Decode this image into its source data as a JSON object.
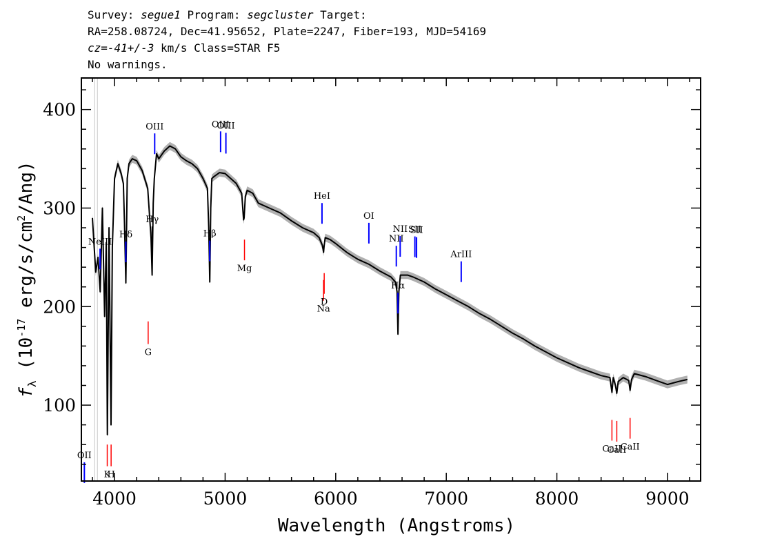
{
  "header": {
    "survey_label": "Survey: ",
    "survey": "segue1",
    "program_label": " Program: ",
    "program": "segcluster",
    "target_label": " Target:",
    "line2": "RA=258.08724, Dec=41.95652, Plate=2247, Fiber=193, MJD=54169",
    "cz_label": "cz",
    "cz_value": "=-41+/-3",
    "cz_rest": " km/s Class=STAR F5",
    "line4": "No warnings."
  },
  "chart_data": {
    "type": "line",
    "xlabel": "Wavelength (Angstroms)",
    "ylabel_parts": [
      "f",
      "λ",
      " (10",
      "-17",
      " erg/s/cm",
      "2",
      "/Ang)"
    ],
    "xlim": [
      3700,
      9300
    ],
    "ylim": [
      23,
      432
    ],
    "xticks": [
      4000,
      5000,
      6000,
      7000,
      8000,
      9000
    ],
    "yticks": [
      100,
      200,
      300,
      400
    ],
    "grid": false,
    "colors": {
      "flux": "#000000",
      "error_band": "#b0b0b0",
      "emission": "#0000ff",
      "absorption": "#ff0000"
    },
    "series": [
      {
        "x": [
          3800,
          3830,
          3850,
          3870,
          3890,
          3910,
          3925,
          3935,
          3950,
          3968,
          3980,
          4000,
          4030,
          4060,
          4080,
          4090,
          4102,
          4115,
          4130,
          4160,
          4200,
          4250,
          4300,
          4330,
          4340,
          4350,
          4360,
          4380,
          4400,
          4450,
          4500,
          4550,
          4600,
          4650,
          4700,
          4750,
          4800,
          4840,
          4852,
          4861,
          4870,
          4880,
          4900,
          4950,
          5000,
          5050,
          5100,
          5150,
          5167,
          5172,
          5183,
          5200,
          5250,
          5300,
          5400,
          5500,
          5600,
          5700,
          5800,
          5850,
          5880,
          5890,
          5896,
          5905,
          5950,
          6000,
          6100,
          6200,
          6300,
          6400,
          6500,
          6540,
          6555,
          6563,
          6571,
          6585,
          6650,
          6700,
          6800,
          6900,
          7000,
          7100,
          7200,
          7300,
          7400,
          7500,
          7600,
          7700,
          7800,
          7900,
          8000,
          8100,
          8200,
          8300,
          8400,
          8480,
          8498,
          8510,
          8530,
          8542,
          8555,
          8600,
          8650,
          8662,
          8675,
          8700,
          8800,
          8900,
          9000,
          9100,
          9180
        ],
        "y": [
          290,
          235,
          250,
          215,
          300,
          190,
          265,
          70,
          280,
          80,
          260,
          330,
          345,
          335,
          325,
          285,
          224,
          330,
          345,
          350,
          348,
          338,
          320,
          270,
          232,
          305,
          330,
          355,
          350,
          358,
          363,
          360,
          352,
          348,
          345,
          340,
          330,
          320,
          280,
          225,
          300,
          330,
          332,
          336,
          335,
          330,
          325,
          315,
          288,
          290,
          312,
          318,
          315,
          305,
          300,
          295,
          287,
          280,
          275,
          270,
          262,
          255,
          262,
          270,
          268,
          264,
          255,
          248,
          243,
          236,
          230,
          225,
          215,
          172,
          215,
          232,
          232,
          230,
          225,
          218,
          212,
          206,
          200,
          193,
          187,
          180,
          173,
          167,
          160,
          154,
          148,
          143,
          138,
          134,
          130,
          128,
          113,
          128,
          120,
          112,
          124,
          128,
          125,
          115,
          126,
          132,
          129,
          125,
          121,
          124,
          126
        ]
      }
    ],
    "emission_lines": [
      {
        "label": "OII",
        "x": 3727
      },
      {
        "label": "NeIII",
        "x": 3869
      },
      {
        "label": "Hδ",
        "x": 4102
      },
      {
        "label": "Hγ",
        "x": 4341
      },
      {
        "label": "OIII",
        "x": 4363
      },
      {
        "label": "Hβ",
        "x": 4861
      },
      {
        "label": "OIII",
        "x": 4959
      },
      {
        "label": "OIII",
        "x": 5007
      },
      {
        "label": "HeI",
        "x": 5876
      },
      {
        "label": "OI",
        "x": 6300
      },
      {
        "label": "NII",
        "x": 6548
      },
      {
        "label": "Hα",
        "x": 6563
      },
      {
        "label": "NII",
        "x": 6583
      },
      {
        "label": "SII",
        "x": 6716
      },
      {
        "label": "SII",
        "x": 6731
      },
      {
        "label": "ArIII",
        "x": 7135
      }
    ],
    "absorption_lines": [
      {
        "label": "K",
        "x": 3934
      },
      {
        "label": "H",
        "x": 3969
      },
      {
        "label": "G",
        "x": 4304
      },
      {
        "label": "Mg",
        "x": 5175
      },
      {
        "label": "Na",
        "x": 5890
      },
      {
        "label": "D",
        "x": 5896
      },
      {
        "label": "CaII",
        "x": 8498
      },
      {
        "label": "CaII",
        "x": 8542
      },
      {
        "label": "CaII",
        "x": 8662
      }
    ]
  }
}
